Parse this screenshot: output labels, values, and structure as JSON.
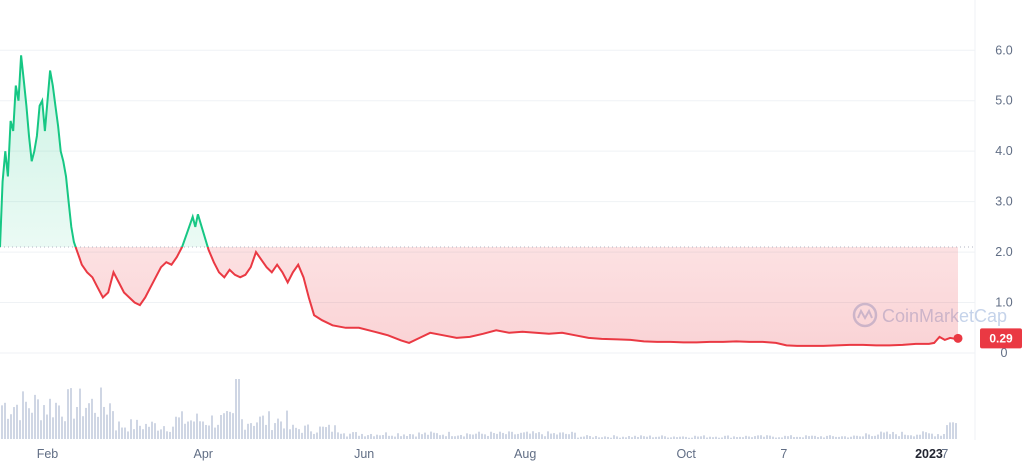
{
  "chart_data": {
    "type": "area",
    "y_ticks": [
      "0",
      "1.0",
      "2.0",
      "3.0",
      "4.0",
      "5.0",
      "6.0"
    ],
    "y_values": [
      0,
      1,
      2,
      3,
      4,
      5,
      6
    ],
    "ylim": [
      0,
      6.6
    ],
    "x_ticks": [
      {
        "label": "Feb",
        "date": "2022-02-01",
        "bold": false
      },
      {
        "label": "Apr",
        "date": "2022-04-01",
        "bold": false
      },
      {
        "label": "Jun",
        "date": "2022-06-01",
        "bold": false
      },
      {
        "label": "Aug",
        "date": "2022-08-01",
        "bold": false
      },
      {
        "label": "Oct",
        "date": "2022-10-01",
        "bold": false
      },
      {
        "label": "7",
        "date": "2022-11-07",
        "bold": false
      },
      {
        "label": "2023",
        "date": "2023-01-01",
        "bold": true
      },
      {
        "label": "7",
        "date": "2023-01-07",
        "bold": false
      }
    ],
    "xlim": [
      "2022-01-14",
      "2023-01-12"
    ],
    "baseline": 2.1,
    "current_price": "0.29",
    "colors": {
      "up": "#16c784",
      "down": "#ea3943",
      "grid": "#eff2f5",
      "baseline": "#b1b5c3",
      "volume": "#cfd6e4"
    },
    "watermark": "CoinMarketCap",
    "series": [
      {
        "values": [
          [
            "2022-01-14",
            2.1
          ],
          [
            "2022-01-15",
            3.4
          ],
          [
            "2022-01-16",
            4.0
          ],
          [
            "2022-01-17",
            3.5
          ],
          [
            "2022-01-18",
            4.6
          ],
          [
            "2022-01-19",
            4.4
          ],
          [
            "2022-01-20",
            5.3
          ],
          [
            "2022-01-21",
            5.0
          ],
          [
            "2022-01-22",
            5.9
          ],
          [
            "2022-01-23",
            5.4
          ],
          [
            "2022-01-24",
            4.9
          ],
          [
            "2022-01-25",
            4.3
          ],
          [
            "2022-01-26",
            3.8
          ],
          [
            "2022-01-27",
            4.0
          ],
          [
            "2022-01-28",
            4.3
          ],
          [
            "2022-01-29",
            4.9
          ],
          [
            "2022-01-30",
            5.0
          ],
          [
            "2022-01-31",
            4.4
          ],
          [
            "2022-02-01",
            5.0
          ],
          [
            "2022-02-02",
            5.6
          ],
          [
            "2022-02-03",
            5.3
          ],
          [
            "2022-02-04",
            4.9
          ],
          [
            "2022-02-05",
            4.5
          ],
          [
            "2022-02-06",
            4.0
          ],
          [
            "2022-02-07",
            3.8
          ],
          [
            "2022-02-08",
            3.5
          ],
          [
            "2022-02-09",
            3.0
          ],
          [
            "2022-02-10",
            2.5
          ],
          [
            "2022-02-11",
            2.2
          ],
          [
            "2022-02-12",
            2.05
          ],
          [
            "2022-02-13",
            1.9
          ],
          [
            "2022-02-14",
            1.75
          ],
          [
            "2022-02-16",
            1.6
          ],
          [
            "2022-02-18",
            1.5
          ],
          [
            "2022-02-20",
            1.3
          ],
          [
            "2022-02-22",
            1.1
          ],
          [
            "2022-02-24",
            1.2
          ],
          [
            "2022-02-26",
            1.6
          ],
          [
            "2022-02-28",
            1.4
          ],
          [
            "2022-03-02",
            1.2
          ],
          [
            "2022-03-04",
            1.1
          ],
          [
            "2022-03-06",
            1.0
          ],
          [
            "2022-03-08",
            0.95
          ],
          [
            "2022-03-10",
            1.1
          ],
          [
            "2022-03-12",
            1.3
          ],
          [
            "2022-03-14",
            1.5
          ],
          [
            "2022-03-16",
            1.7
          ],
          [
            "2022-03-18",
            1.8
          ],
          [
            "2022-03-20",
            1.75
          ],
          [
            "2022-03-22",
            1.9
          ],
          [
            "2022-03-24",
            2.1
          ],
          [
            "2022-03-26",
            2.4
          ],
          [
            "2022-03-28",
            2.7
          ],
          [
            "2022-03-29",
            2.5
          ],
          [
            "2022-03-30",
            2.75
          ],
          [
            "2022-04-01",
            2.4
          ],
          [
            "2022-04-03",
            2.05
          ],
          [
            "2022-04-05",
            1.8
          ],
          [
            "2022-04-07",
            1.6
          ],
          [
            "2022-04-09",
            1.5
          ],
          [
            "2022-04-11",
            1.65
          ],
          [
            "2022-04-13",
            1.55
          ],
          [
            "2022-04-15",
            1.5
          ],
          [
            "2022-04-17",
            1.55
          ],
          [
            "2022-04-19",
            1.7
          ],
          [
            "2022-04-21",
            2.0
          ],
          [
            "2022-04-23",
            1.85
          ],
          [
            "2022-04-25",
            1.7
          ],
          [
            "2022-04-27",
            1.6
          ],
          [
            "2022-04-29",
            1.75
          ],
          [
            "2022-05-01",
            1.6
          ],
          [
            "2022-05-03",
            1.4
          ],
          [
            "2022-05-05",
            1.6
          ],
          [
            "2022-05-07",
            1.75
          ],
          [
            "2022-05-09",
            1.5
          ],
          [
            "2022-05-11",
            1.1
          ],
          [
            "2022-05-13",
            0.75
          ],
          [
            "2022-05-16",
            0.65
          ],
          [
            "2022-05-20",
            0.55
          ],
          [
            "2022-05-25",
            0.5
          ],
          [
            "2022-05-30",
            0.5
          ],
          [
            "2022-06-05",
            0.42
          ],
          [
            "2022-06-10",
            0.35
          ],
          [
            "2022-06-15",
            0.25
          ],
          [
            "2022-06-18",
            0.2
          ],
          [
            "2022-06-22",
            0.3
          ],
          [
            "2022-06-26",
            0.4
          ],
          [
            "2022-07-01",
            0.35
          ],
          [
            "2022-07-06",
            0.3
          ],
          [
            "2022-07-11",
            0.32
          ],
          [
            "2022-07-16",
            0.38
          ],
          [
            "2022-07-21",
            0.45
          ],
          [
            "2022-07-26",
            0.4
          ],
          [
            "2022-07-31",
            0.42
          ],
          [
            "2022-08-05",
            0.4
          ],
          [
            "2022-08-10",
            0.38
          ],
          [
            "2022-08-15",
            0.4
          ],
          [
            "2022-08-20",
            0.35
          ],
          [
            "2022-08-25",
            0.3
          ],
          [
            "2022-08-30",
            0.28
          ],
          [
            "2022-09-05",
            0.27
          ],
          [
            "2022-09-10",
            0.26
          ],
          [
            "2022-09-15",
            0.23
          ],
          [
            "2022-09-20",
            0.22
          ],
          [
            "2022-09-25",
            0.22
          ],
          [
            "2022-09-30",
            0.21
          ],
          [
            "2022-10-05",
            0.21
          ],
          [
            "2022-10-10",
            0.22
          ],
          [
            "2022-10-15",
            0.22
          ],
          [
            "2022-10-20",
            0.23
          ],
          [
            "2022-10-25",
            0.22
          ],
          [
            "2022-10-30",
            0.22
          ],
          [
            "2022-11-04",
            0.2
          ],
          [
            "2022-11-08",
            0.15
          ],
          [
            "2022-11-12",
            0.14
          ],
          [
            "2022-11-17",
            0.14
          ],
          [
            "2022-11-22",
            0.14
          ],
          [
            "2022-11-27",
            0.15
          ],
          [
            "2022-12-02",
            0.16
          ],
          [
            "2022-12-07",
            0.16
          ],
          [
            "2022-12-12",
            0.15
          ],
          [
            "2022-12-17",
            0.15
          ],
          [
            "2022-12-22",
            0.16
          ],
          [
            "2022-12-27",
            0.18
          ],
          [
            "2023-01-01",
            0.18
          ],
          [
            "2023-01-03",
            0.2
          ],
          [
            "2023-01-05",
            0.32
          ],
          [
            "2023-01-07",
            0.26
          ],
          [
            "2023-01-09",
            0.3
          ],
          [
            "2023-01-11",
            0.28
          ],
          [
            "2023-01-12",
            0.29
          ]
        ]
      }
    ]
  }
}
